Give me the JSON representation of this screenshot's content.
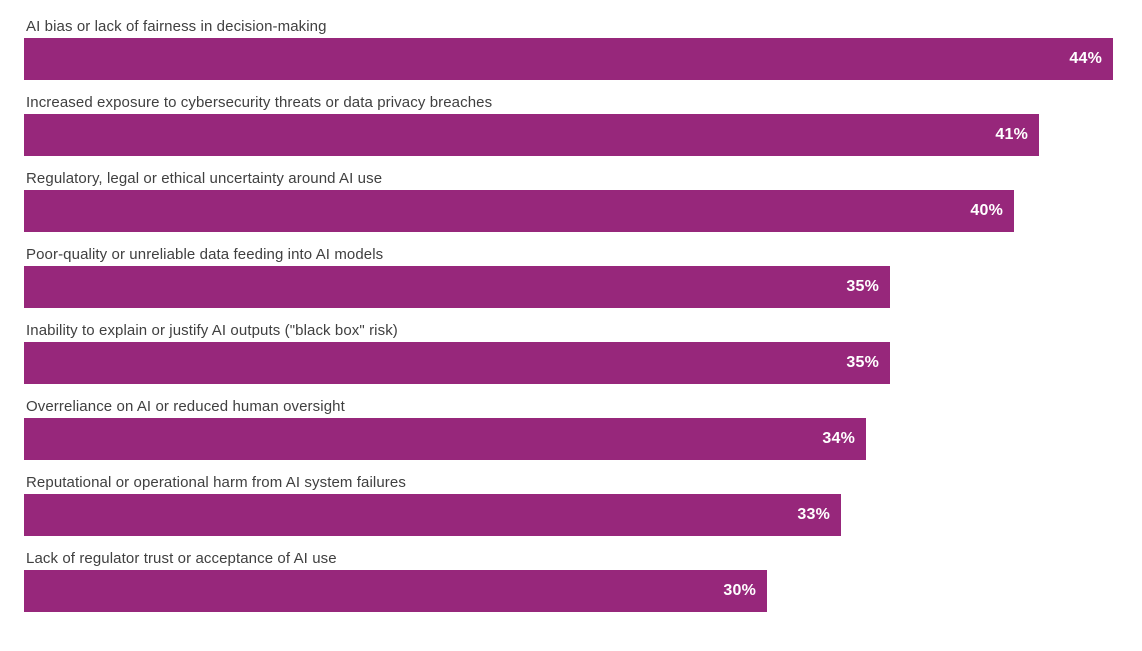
{
  "chart_data": {
    "type": "bar",
    "orientation": "horizontal",
    "title": "",
    "xlabel": "",
    "ylabel": "",
    "categories": [
      "AI bias or lack of fairness in decision-making",
      "Increased exposure to cybersecurity threats or data privacy breaches",
      "Regulatory, legal or ethical uncertainty around AI use",
      "Poor-quality or unreliable data feeding into AI models",
      "Inability to explain or justify AI outputs (\"black box\" risk)",
      "Overreliance on AI or reduced human oversight",
      "Reputational or operational harm from AI system failures",
      "Lack of regulator trust or acceptance of AI use"
    ],
    "values": [
      44,
      41,
      40,
      35,
      35,
      34,
      33,
      30
    ],
    "value_labels": [
      "44%",
      "41%",
      "40%",
      "35%",
      "35%",
      "34%",
      "33%",
      "30%"
    ],
    "value_suffix": "%",
    "xlim": [
      0,
      44
    ],
    "grid": false,
    "legend": false,
    "axes_shown": false,
    "bar_color": "#97277b",
    "value_label_color": "#ffffff",
    "category_label_color": "#404040"
  }
}
